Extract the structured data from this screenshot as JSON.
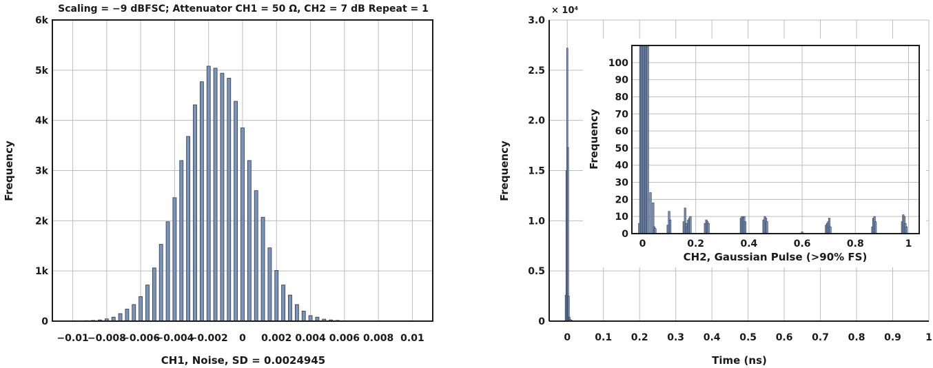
{
  "chart_data": [
    {
      "type": "bar",
      "title": "Scaling = −9 dBFSC; Attenuator CH1 = 50 Ω, CH2 = 7 dB Repeat = 1",
      "xlabel": "CH1, Noise, SD = 0.0024945",
      "ylabel": "Frequency",
      "xlim": [
        -0.0112,
        0.0112
      ],
      "ylim": [
        0,
        6000
      ],
      "x_ticks": [
        -0.01,
        -0.008,
        -0.006,
        -0.004,
        -0.002,
        0,
        0.002,
        0.004,
        0.006,
        0.008,
        0.01
      ],
      "x_tick_labels": [
        "−0.01",
        "−0.008",
        "−0.006",
        "−0.004",
        "−0.002",
        "0",
        "0.002",
        "0.004",
        "0.006",
        "0.008",
        "0.01"
      ],
      "y_ticks": [
        0,
        1000,
        2000,
        3000,
        4000,
        5000,
        6000
      ],
      "y_tick_labels": [
        "0",
        "1k",
        "2k",
        "3k",
        "4k",
        "5k",
        "6k"
      ],
      "grid": true,
      "bar_color": "#7b93b8",
      "bins": [
        -0.0104,
        -0.01,
        -0.0096,
        -0.0092,
        -0.0088,
        -0.0084,
        -0.008,
        -0.0076,
        -0.0072,
        -0.0068,
        -0.0064,
        -0.006,
        -0.0056,
        -0.0052,
        -0.0048,
        -0.0044,
        -0.004,
        -0.0036,
        -0.0032,
        -0.0028,
        -0.0024,
        -0.002,
        -0.0016,
        -0.0012,
        -0.0008,
        -0.0004,
        0.0,
        0.0004,
        0.0008,
        0.0012,
        0.0016,
        0.002,
        0.0024,
        0.0028,
        0.0032,
        0.0036,
        0.004,
        0.0044,
        0.0048,
        0.0052,
        0.0056,
        0.006,
        0.0064,
        0.0068,
        0.0072,
        0.0076,
        0.008,
        0.0084,
        0.0088,
        0.0092,
        0.0096,
        0.01,
        0.0104
      ],
      "values": [
        2,
        5,
        8,
        10,
        15,
        25,
        45,
        80,
        150,
        240,
        330,
        490,
        720,
        1060,
        1530,
        1980,
        2460,
        3200,
        3680,
        4310,
        4770,
        5080,
        5040,
        4940,
        4840,
        4380,
        3850,
        3200,
        2600,
        2070,
        1460,
        1010,
        720,
        520,
        330,
        200,
        110,
        80,
        40,
        25,
        15,
        8,
        5,
        3,
        2,
        1,
        1,
        1,
        0,
        0,
        0,
        0,
        0
      ]
    },
    {
      "type": "bar",
      "xlabel": "Time (ns)",
      "ylabel": "Frequency",
      "y_multiplier": "× 10⁴",
      "xlim": [
        -0.05,
        1.0
      ],
      "ylim": [
        0,
        3.0
      ],
      "x_ticks": [
        0,
        0.1,
        0.2,
        0.3,
        0.4,
        0.5,
        0.6,
        0.7,
        0.8,
        0.9,
        1
      ],
      "x_tick_labels": [
        "0",
        "0.1",
        "0.2",
        "0.3",
        "0.4",
        "0.5",
        "0.6",
        "0.7",
        "0.8",
        "0.9",
        "1"
      ],
      "y_ticks": [
        0,
        0.5,
        1.0,
        1.5,
        2.0,
        2.5,
        3.0
      ],
      "y_tick_labels": [
        "0",
        "0.5",
        "1.0",
        "1.5",
        "2.0",
        "2.5",
        "3.0"
      ],
      "grid": true,
      "bar_color": "#7b93b8",
      "x": [
        -0.004,
        -0.002,
        0.0,
        0.002,
        0.004,
        0.006,
        0.008,
        0.012,
        0.016
      ],
      "values": [
        0.26,
        1.5,
        2.72,
        1.73,
        0.25,
        0.04,
        0.02,
        0.01,
        0.005
      ]
    },
    {
      "type": "bar",
      "inset": true,
      "xlabel": "CH2, Gaussian Pulse (>90% FS)",
      "ylabel": "Frequency",
      "xlim": [
        -0.04,
        1.04
      ],
      "ylim": [
        0,
        110
      ],
      "x_ticks": [
        0,
        0.2,
        0.4,
        0.6,
        0.8,
        1
      ],
      "x_tick_labels": [
        "0",
        "0.2",
        "0.4",
        "0.6",
        "0.8",
        "1"
      ],
      "y_ticks": [
        0,
        10,
        20,
        30,
        40,
        50,
        60,
        70,
        80,
        90,
        100
      ],
      "y_tick_labels": [
        "0",
        "10",
        "20",
        "30",
        "40",
        "50",
        "60",
        "70",
        "80",
        "90",
        "100"
      ],
      "grid": true,
      "bar_color": "#7b93b8",
      "x": [
        -0.012,
        -0.008,
        -0.004,
        0.0,
        0.004,
        0.008,
        0.012,
        0.016,
        0.02,
        0.03,
        0.04,
        0.044,
        0.048,
        0.095,
        0.1,
        0.104,
        0.155,
        0.16,
        0.164,
        0.168,
        0.172,
        0.176,
        0.18,
        0.235,
        0.24,
        0.244,
        0.248,
        0.37,
        0.374,
        0.378,
        0.382,
        0.386,
        0.455,
        0.46,
        0.464,
        0.468,
        0.6,
        0.69,
        0.694,
        0.698,
        0.702,
        0.706,
        0.864,
        0.868,
        0.872,
        0.876,
        0.976,
        0.98,
        0.984,
        0.988,
        0.992
      ],
      "values": [
        6,
        110,
        110,
        110,
        110,
        110,
        110,
        110,
        110,
        24,
        18,
        4,
        3,
        5,
        13,
        8,
        7,
        15,
        6,
        4,
        8,
        9,
        10,
        6,
        8,
        7,
        6,
        9,
        10,
        9,
        10,
        7,
        8,
        10,
        9,
        7,
        1,
        5,
        6,
        7,
        9,
        4,
        4,
        9,
        10,
        7,
        7,
        11,
        10,
        6,
        4
      ]
    }
  ]
}
